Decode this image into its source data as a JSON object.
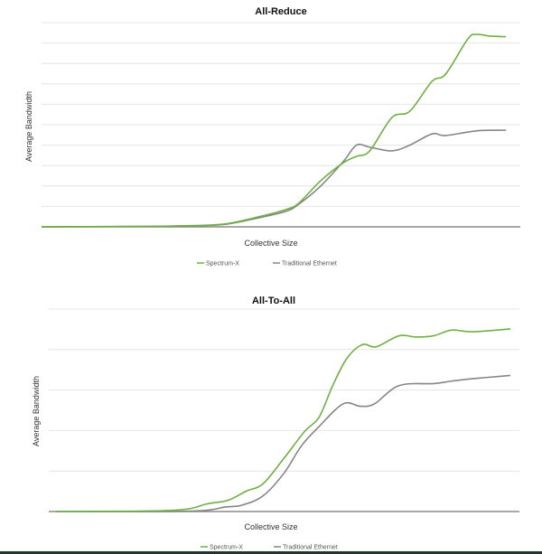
{
  "colors": {
    "spectrum_x": "#70b043",
    "traditional_ethernet": "#858585",
    "grid": "#e4e4e4",
    "axis": "#8a8a8a"
  },
  "chart_data": [
    {
      "type": "line",
      "title": "All-Reduce",
      "xlabel": "Collective Size",
      "ylabel": "Average Bandwidth",
      "xlim": [
        0,
        100
      ],
      "ylim": [
        0,
        10
      ],
      "grid": true,
      "gridlines": 10,
      "legend_position": "bottom-center",
      "series": [
        {
          "name": "Spectrum-X",
          "color": "#70b043",
          "x": [
            0,
            19.6,
            29,
            38.5,
            46,
            51.7,
            54.5,
            59.2,
            64,
            66.8,
            69.6,
            74.3,
            78.1,
            82.8,
            85.7,
            90.4,
            92.3,
            95.1,
            98.5
          ],
          "y": [
            0,
            0.02,
            0.05,
            0.13,
            0.49,
            0.84,
            1.15,
            2.26,
            3.14,
            3.45,
            3.72,
            5.35,
            5.66,
            7.12,
            7.48,
            9.2,
            9.42,
            9.34,
            9.31
          ]
        },
        {
          "name": "Traditional Ethernet",
          "color": "#858585",
          "x": [
            0,
            19.6,
            29,
            38.5,
            46,
            51.7,
            54.5,
            59.2,
            64,
            66.8,
            69.6,
            74.3,
            78.1,
            82.8,
            85.7,
            92.3,
            98.5
          ],
          "y": [
            0,
            0.02,
            0.04,
            0.11,
            0.44,
            0.75,
            1.1,
            2.0,
            3.2,
            4.0,
            3.9,
            3.72,
            4.0,
            4.55,
            4.47,
            4.7,
            4.73
          ]
        }
      ]
    },
    {
      "type": "line",
      "title": "All-To-All",
      "xlabel": "Collective Size",
      "ylabel": "Average Bandwidth",
      "xlim": [
        0,
        100
      ],
      "ylim": [
        0,
        5
      ],
      "grid": true,
      "gridlines": 5,
      "legend_position": "bottom-center",
      "series": [
        {
          "name": "Spectrum-X",
          "color": "#70b043",
          "x": [
            0,
            25.7,
            33.3,
            37.9,
            41.8,
            45.6,
            50.2,
            54.8,
            57.9,
            60.9,
            64.0,
            67.4,
            70.5,
            75.5,
            79.3,
            83.1,
            87.0,
            91.6,
            100
          ],
          "y": [
            0,
            0.03,
            0.19,
            0.28,
            0.5,
            0.69,
            1.32,
            1.99,
            2.33,
            3.11,
            3.78,
            4.12,
            4.07,
            4.34,
            4.31,
            4.34,
            4.48,
            4.44,
            4.51
          ]
        },
        {
          "name": "Traditional Ethernet",
          "color": "#858585",
          "x": [
            0,
            29.5,
            37.2,
            41.0,
            45.6,
            50.2,
            54.0,
            57.9,
            63.2,
            67.0,
            70.1,
            75.5,
            83.1,
            87.0,
            91.6,
            100
          ],
          "y": [
            0,
            0.01,
            0.11,
            0.16,
            0.39,
            0.95,
            1.62,
            2.1,
            2.66,
            2.6,
            2.66,
            3.11,
            3.16,
            3.22,
            3.28,
            3.36
          ]
        }
      ]
    }
  ]
}
